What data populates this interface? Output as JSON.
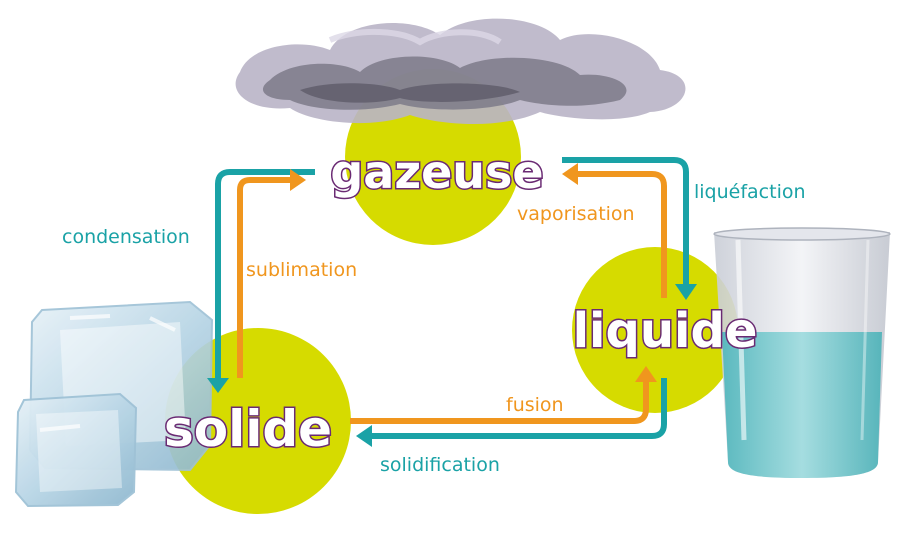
{
  "colors": {
    "teal": "#1aa2a6",
    "orange": "#f0961e",
    "circle": "#d6db00",
    "outline": "#6a2a73"
  },
  "states": {
    "gas": "gazeuse",
    "liquid": "liquide",
    "solid": "solide"
  },
  "transitions": {
    "condensation": "condensation",
    "sublimation": "sublimation",
    "vaporisation": "vaporisation",
    "liquefaction": "liquéfaction",
    "fusion": "fusion",
    "solidification": "solidification"
  },
  "pictures": [
    "cloud",
    "ice-cubes",
    "water-glass"
  ]
}
